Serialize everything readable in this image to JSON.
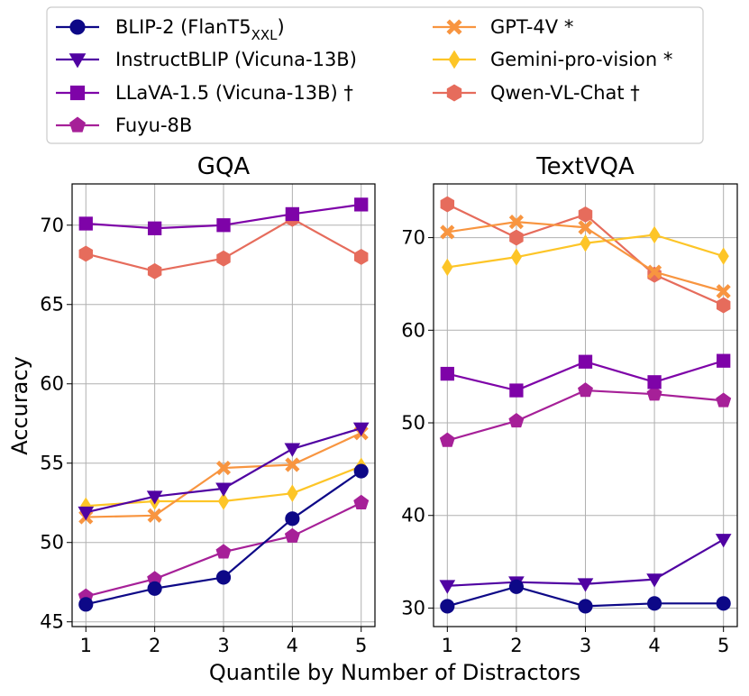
{
  "chart_data": {
    "type": "line",
    "xlabel": "Quantile by Number of Distractors",
    "ylabel": "Accuracy",
    "x": [
      1,
      2,
      3,
      4,
      5
    ],
    "grid": true,
    "legend_placement": "top",
    "legend": [
      {
        "key": "blip2",
        "label": "BLIP-2 (FlanT5",
        "sub": "XXL",
        "suffix": ")",
        "color": "#0d0887",
        "marker": "circle"
      },
      {
        "key": "instructblip",
        "label": "InstructBLIP (Vicuna-13B)",
        "sub": "",
        "suffix": "",
        "color": "#5002a2",
        "marker": "triangle-down"
      },
      {
        "key": "llava",
        "label": "LLaVA-1.5 (Vicuna-13B) †",
        "sub": "",
        "suffix": "",
        "color": "#7e03a8",
        "marker": "square"
      },
      {
        "key": "fuyu",
        "label": "Fuyu-8B",
        "sub": "",
        "suffix": "",
        "color": "#a62098",
        "marker": "pentagon"
      },
      {
        "key": "gpt4v",
        "label": "GPT-4V *",
        "sub": "",
        "suffix": "",
        "color": "#f89540",
        "marker": "x"
      },
      {
        "key": "gemini",
        "label": "Gemini-pro-vision *",
        "sub": "",
        "suffix": "",
        "color": "#fdc527",
        "marker": "diamond"
      },
      {
        "key": "qwen",
        "label": "Qwen-VL-Chat †",
        "sub": "",
        "suffix": "",
        "color": "#e66c5c",
        "marker": "hexagon"
      }
    ],
    "panels": [
      {
        "title": "GQA",
        "ylim": [
          44.7,
          72.6
        ],
        "yticks": [
          45,
          50,
          55,
          60,
          65,
          70
        ],
        "series": {
          "blip2": [
            46.1,
            47.1,
            47.8,
            51.5,
            54.5
          ],
          "instructblip": [
            51.9,
            52.9,
            53.4,
            55.9,
            57.2
          ],
          "llava": [
            70.1,
            69.8,
            70.0,
            70.7,
            71.3
          ],
          "fuyu": [
            46.6,
            47.7,
            49.4,
            50.4,
            52.5
          ],
          "gpt4v": [
            51.6,
            51.7,
            54.7,
            54.9,
            56.9
          ],
          "gemini": [
            52.3,
            52.6,
            52.6,
            53.1,
            54.8
          ],
          "qwen": [
            68.2,
            67.1,
            67.9,
            70.4,
            68.0
          ]
        }
      },
      {
        "title": "TextVQA",
        "ylim": [
          28.0,
          75.8
        ],
        "yticks": [
          30,
          40,
          50,
          60,
          70
        ],
        "series": {
          "blip2": [
            30.2,
            32.3,
            30.2,
            30.5,
            30.5
          ],
          "instructblip": [
            32.4,
            32.8,
            32.6,
            33.1,
            37.4
          ],
          "llava": [
            55.3,
            53.5,
            56.6,
            54.4,
            56.7
          ],
          "fuyu": [
            48.1,
            50.2,
            53.5,
            53.1,
            52.4
          ],
          "gpt4v": [
            70.6,
            71.7,
            71.1,
            66.3,
            64.2
          ],
          "gemini": [
            66.8,
            67.9,
            69.4,
            70.3,
            68.0
          ],
          "qwen": [
            73.6,
            70.0,
            72.5,
            66.0,
            62.7
          ]
        }
      }
    ]
  }
}
